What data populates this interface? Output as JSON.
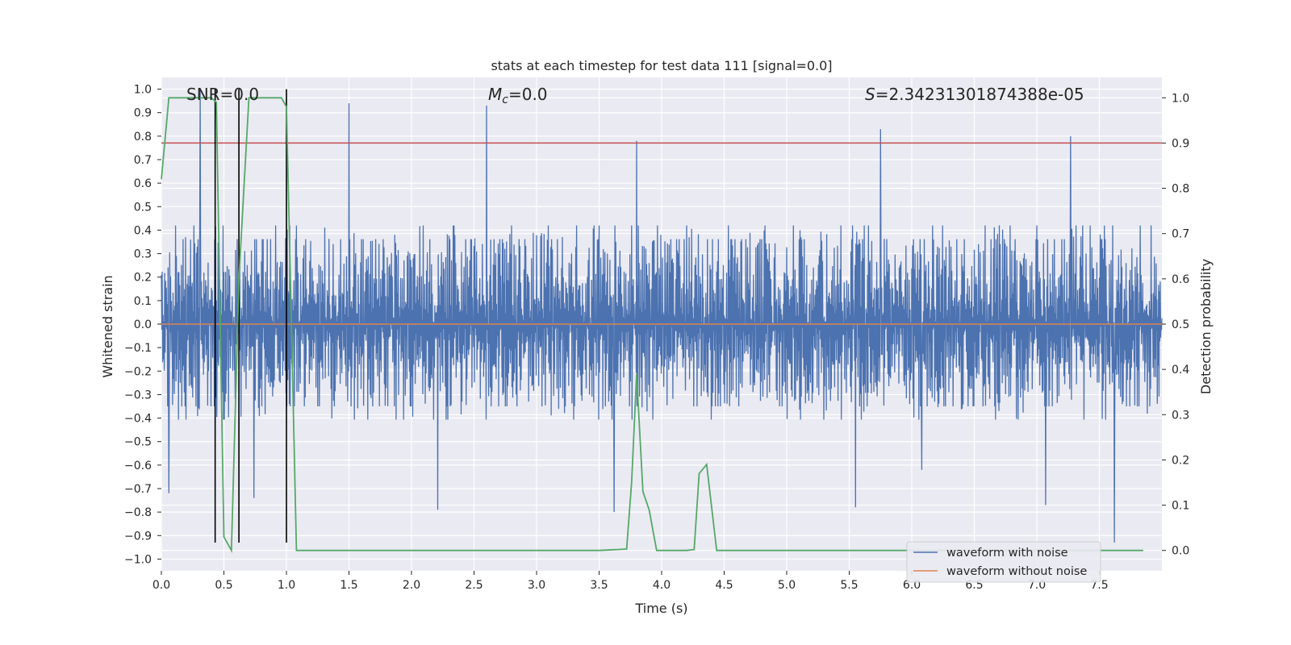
{
  "chart_data": {
    "type": "line",
    "title": "stats at each timestep for test data 111 [signal=0.0]",
    "xlabel": "Time (s)",
    "ylabel_left": "Whitened strain",
    "ylabel_right": "Detection probability",
    "xlim": [
      0.0,
      8.0
    ],
    "ylim_left": [
      -1.05,
      1.05
    ],
    "ylim_right": [
      -0.045,
      1.045
    ],
    "x_ticks": [
      "0.0",
      "0.5",
      "1.0",
      "1.5",
      "2.0",
      "2.5",
      "3.0",
      "3.5",
      "4.0",
      "4.5",
      "5.0",
      "5.5",
      "6.0",
      "6.5",
      "7.0",
      "7.5"
    ],
    "y_ticks_left": [
      "1.0",
      "0.9",
      "0.8",
      "0.7",
      "0.6",
      "0.5",
      "0.4",
      "0.3",
      "0.2",
      "0.1",
      "0.0",
      "−0.1",
      "−0.2",
      "−0.3",
      "−0.4",
      "−0.5",
      "−0.6",
      "−0.7",
      "−0.8",
      "−0.9",
      "−1.0"
    ],
    "y_ticks_right": [
      "1.0",
      "0.9",
      "0.8",
      "0.7",
      "0.6",
      "0.5",
      "0.4",
      "0.3",
      "0.2",
      "0.1",
      "0.0"
    ],
    "grid": true,
    "legend_position": "lower-right",
    "annotations": {
      "snr": "SNR=0.0",
      "mc": "M_c=0.0",
      "mc_main": "M",
      "mc_sub": "c",
      "mc_value": "=0.0",
      "s_symbol": "S",
      "s_value": "=2.34231301874388e-05"
    },
    "series": [
      {
        "name": "waveform with noise",
        "color": "#4c72b0",
        "axis": "left",
        "description_values": {
          "typical_range": [
            -0.35,
            0.42
          ],
          "peak_max": 1.0,
          "peak_min": -0.93
        },
        "spikes": [
          [
            0.31,
            1.0
          ],
          [
            1.5,
            0.94
          ],
          [
            2.6,
            0.93
          ],
          [
            5.75,
            0.83
          ],
          [
            7.27,
            0.8
          ],
          [
            3.8,
            0.78
          ],
          [
            7.62,
            -0.93
          ],
          [
            2.21,
            -0.79
          ],
          [
            3.62,
            -0.8
          ],
          [
            5.55,
            -0.78
          ],
          [
            0.06,
            -0.72
          ],
          [
            0.74,
            -0.74
          ],
          [
            6.08,
            -0.62
          ],
          [
            7.07,
            -0.77
          ]
        ]
      },
      {
        "name": "waveform without noise",
        "color": "#dd8452",
        "axis": "left",
        "x": [
          0.0,
          8.0
        ],
        "y": [
          0.0,
          0.0
        ]
      },
      {
        "name": "",
        "color": "#55a868",
        "axis": "right",
        "x": [
          0.0,
          0.06,
          0.1,
          0.2,
          0.3,
          0.4,
          0.44,
          0.5,
          0.56,
          0.62,
          0.7,
          0.8,
          0.9,
          0.96,
          1.0,
          1.04,
          1.08,
          1.15,
          1.5,
          2.0,
          3.0,
          3.5,
          3.72,
          3.76,
          3.8,
          3.85,
          3.9,
          3.96,
          4.0,
          4.2,
          4.26,
          4.3,
          4.36,
          4.44,
          4.5,
          5.0,
          6.0,
          7.0,
          7.85
        ],
        "y": [
          0.82,
          1.0,
          1.0,
          1.0,
          1.0,
          1.0,
          0.99,
          0.03,
          0.0,
          0.6,
          1.0,
          1.0,
          1.0,
          1.0,
          0.98,
          0.5,
          0.0,
          0.0,
          0.0,
          0.0,
          0.0,
          0.0,
          0.003,
          0.15,
          0.39,
          0.13,
          0.09,
          0.0,
          0.0,
          0.0,
          0.002,
          0.17,
          0.19,
          0.0,
          0.0,
          0.0,
          0.0,
          0.0,
          0.0
        ]
      }
    ],
    "threshold_line": {
      "color": "#c44e52",
      "axis": "right",
      "value": 0.9
    },
    "vertical_lines": {
      "color": "#000000",
      "x": [
        0.43,
        0.62,
        1.0
      ],
      "y_from": -0.93,
      "y_to": 1.0
    }
  }
}
